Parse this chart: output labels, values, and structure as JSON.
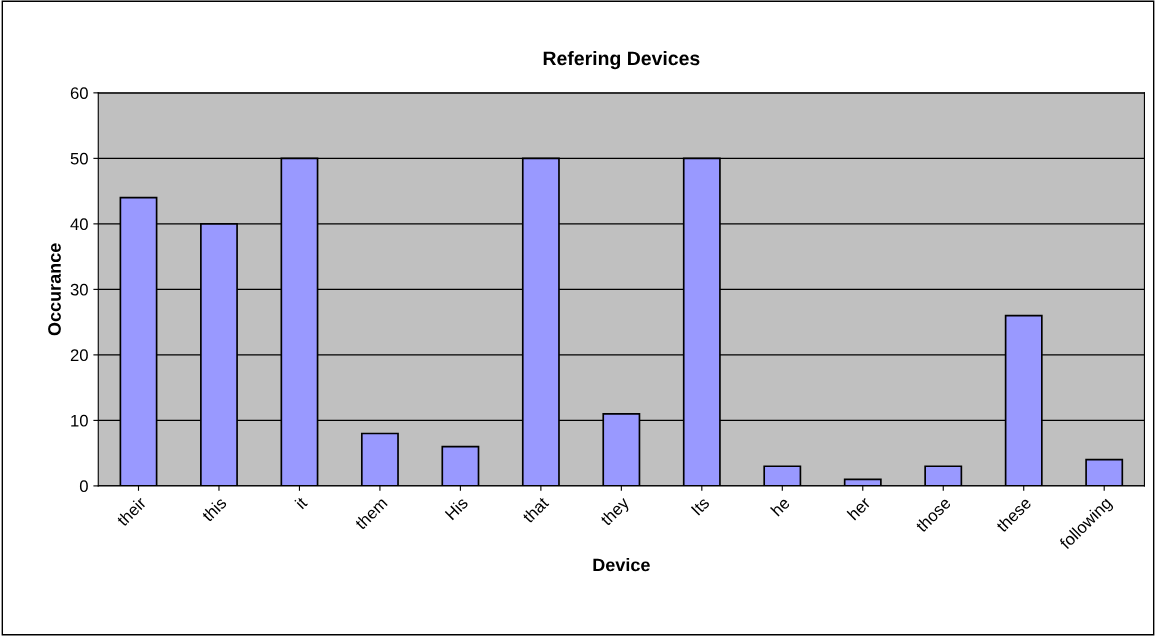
{
  "chart_data": {
    "type": "bar",
    "title": "Refering Devices",
    "xlabel": "Device",
    "ylabel": "Occurance",
    "categories": [
      "their",
      "this",
      "it",
      "them",
      "His",
      "that",
      "they",
      "Its",
      "he",
      "her",
      "those",
      "these",
      "following"
    ],
    "values": [
      44,
      40,
      50,
      8,
      6,
      50,
      11,
      50,
      3,
      1,
      3,
      26,
      4
    ],
    "color": "#9999ff",
    "ylim": [
      0,
      60
    ],
    "yticks": [
      0,
      10,
      20,
      30,
      40,
      50,
      60
    ],
    "grid": "y",
    "legend": false
  }
}
